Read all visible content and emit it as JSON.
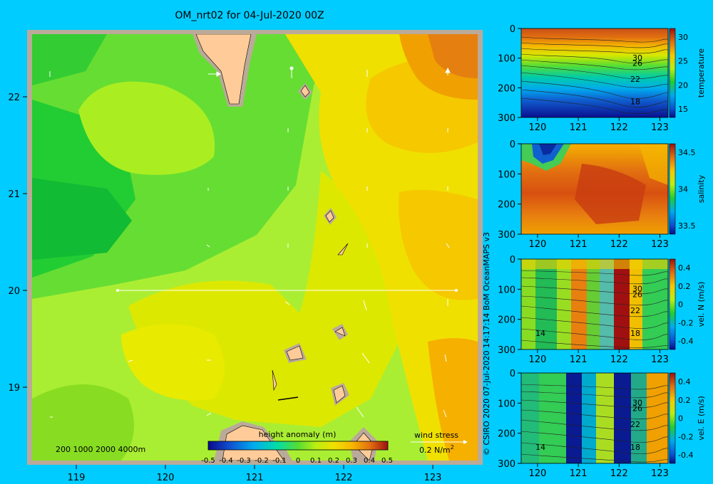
{
  "title": "OM_nrt02 for 04-Jul-2020 00Z",
  "credit": "© CSIRO 2020  07-Jul-2020 14:17:14 BoM OceanMAPS v3",
  "colors": {
    "background": "#00ccff",
    "land": "#ffcc99",
    "land_border": "#bbaa99"
  },
  "map": {
    "x_ticks": [
      "119",
      "120",
      "121",
      "122",
      "123"
    ],
    "y_ticks": [
      "22",
      "21",
      "20",
      "19"
    ],
    "depth_legend": "200  1000  2000  4000m",
    "colorbar_label": "height anomaly (m)",
    "colorbar_ticks": [
      "-0.5",
      "-0.4",
      "-0.3",
      "-0.2",
      "-0.1",
      "0",
      "0.1",
      "0.2",
      "0.3",
      "0.4",
      "0.5"
    ],
    "wind_label": "wind stress",
    "wind_scale": "0.2 N/m",
    "wind_scale_sup": "2"
  },
  "chart_data": [
    {
      "type": "heatmap",
      "title": "OM_nrt02 for 04-Jul-2020 00Z",
      "field": "height anomaly (m)",
      "xlim": [
        118.5,
        123.5
      ],
      "ylim": [
        18.3,
        22.7
      ],
      "clim": [
        -0.5,
        0.5
      ],
      "xticks": [
        119,
        120,
        121,
        122,
        123
      ],
      "yticks": [
        19,
        20,
        21,
        22
      ],
      "section_line": {
        "lat": 20,
        "lon_start": 119.5,
        "lon_end": 123.2
      }
    },
    {
      "type": "heatmap",
      "field": "temperature",
      "xticks": [
        "120",
        "121",
        "122",
        "123"
      ],
      "yticks": [
        "0",
        "100",
        "200",
        "300"
      ],
      "clim": [
        15,
        32
      ],
      "colorbar_ticks": [
        "30",
        "25",
        "20",
        "15"
      ],
      "contour_labels": [
        "30",
        "26",
        "22",
        "18"
      ]
    },
    {
      "type": "heatmap",
      "field": "salinity",
      "xticks": [
        "120",
        "121",
        "122",
        "123"
      ],
      "yticks": [
        "0",
        "100",
        "200",
        "300"
      ],
      "clim": [
        33.5,
        34.9
      ],
      "colorbar_ticks": [
        "34.5",
        "34",
        "33.5"
      ]
    },
    {
      "type": "heatmap",
      "field": "vel. N  (m/s)",
      "xticks": [
        "120",
        "121",
        "122",
        "123"
      ],
      "yticks": [
        "0",
        "100",
        "200",
        "300"
      ],
      "clim": [
        -0.4,
        0.45
      ],
      "colorbar_ticks": [
        "0.4",
        "0.2",
        "0",
        "-0.2",
        "-0.4"
      ],
      "contour_labels": [
        "30",
        "26",
        "22",
        "18",
        "14"
      ]
    },
    {
      "type": "heatmap",
      "field": "vel. E  (m/s)",
      "xticks": [
        "120",
        "121",
        "122",
        "123"
      ],
      "yticks": [
        "0",
        "100",
        "200",
        "300"
      ],
      "clim": [
        -0.4,
        0.45
      ],
      "colorbar_ticks": [
        "0.4",
        "0.2",
        "0",
        "-0.2",
        "-0.4"
      ],
      "contour_labels": [
        "30",
        "26",
        "22",
        "18",
        "14"
      ]
    }
  ]
}
